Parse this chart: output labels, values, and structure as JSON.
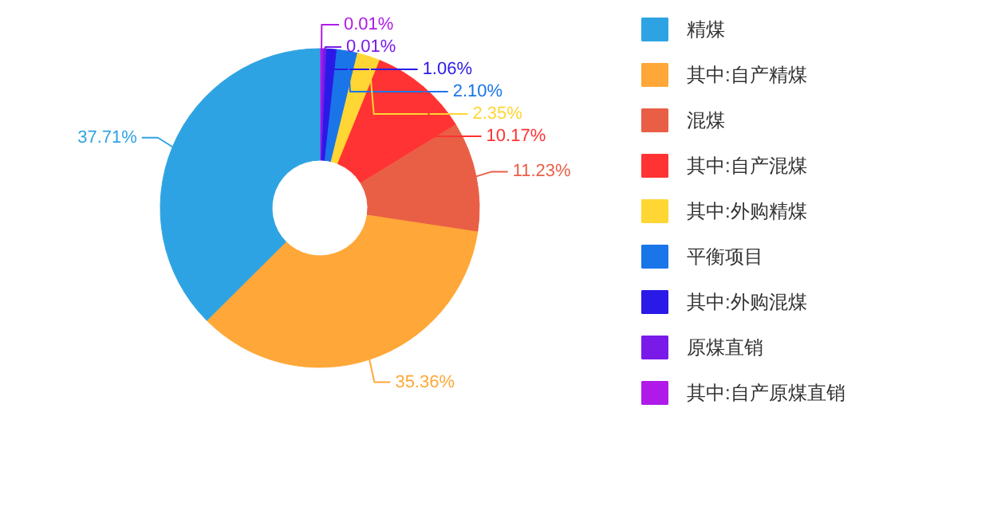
{
  "chart_data": {
    "type": "donut",
    "categories": [
      "精煤",
      "其中:自产精煤",
      "混煤",
      "其中:自产混煤",
      "其中:外购精煤",
      "平衡项目",
      "其中:外购混煤",
      "原煤直销",
      "其中:自产原煤直销"
    ],
    "values": [
      37.71,
      35.36,
      11.23,
      10.17,
      2.35,
      2.1,
      1.06,
      0.01,
      0.01
    ],
    "value_labels": [
      "37.71%",
      "35.36%",
      "11.23%",
      "10.17%",
      "2.35%",
      "2.10%",
      "1.06%",
      "0.01%",
      "0.01%"
    ],
    "colors": [
      "#2ea3e3",
      "#ffa738",
      "#e95f46",
      "#ff3333",
      "#ffd633",
      "#1a75e8",
      "#2a1ae8",
      "#7a1ae8",
      "#b01ae8"
    ],
    "legend": "right"
  }
}
